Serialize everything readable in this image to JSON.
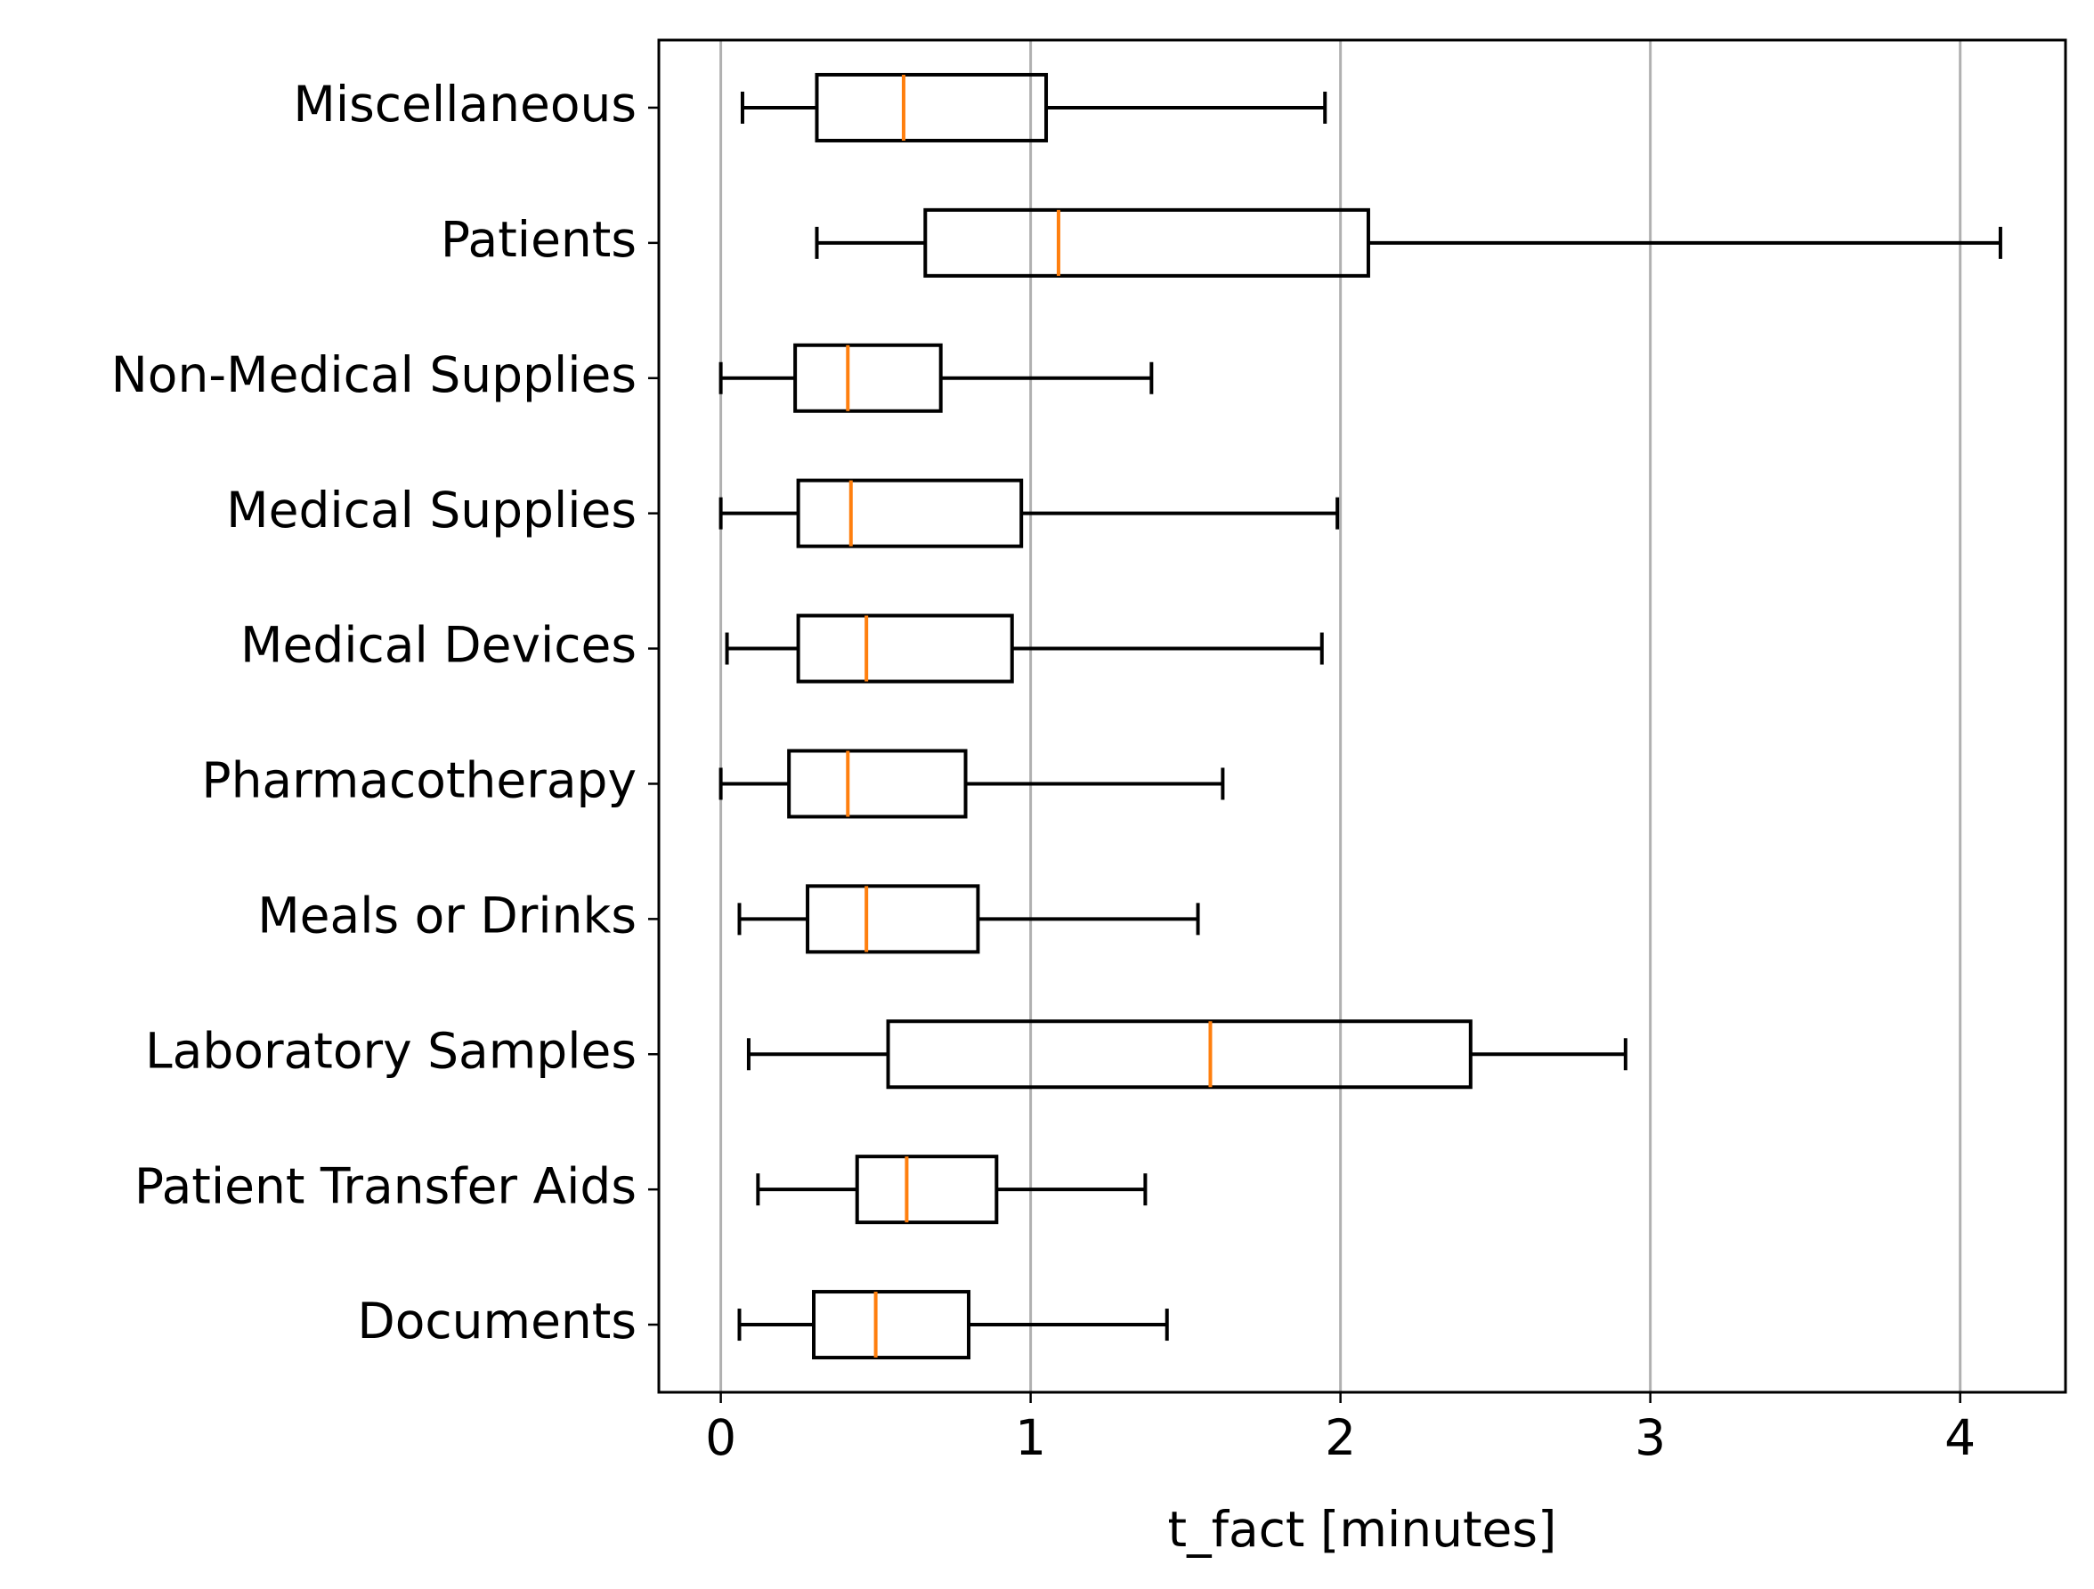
{
  "chart_data": {
    "type": "boxplot",
    "xlabel": "t_fact [minutes]",
    "categories": [
      "Documents",
      "Patient Transfer Aids",
      "Laboratory Samples",
      "Meals or Drinks",
      "Pharmacotherapy",
      "Medical Devices",
      "Medical Supplies",
      "Non-Medical Supplies",
      "Patients",
      "Miscellaneous"
    ],
    "whislo": [
      0.06,
      0.12,
      0.09,
      0.06,
      0.0,
      0.02,
      0.0,
      0.0,
      0.31,
      0.07
    ],
    "q1": [
      0.3,
      0.44,
      0.54,
      0.28,
      0.22,
      0.25,
      0.25,
      0.24,
      0.66,
      0.31
    ],
    "med": [
      0.5,
      0.6,
      1.58,
      0.47,
      0.41,
      0.47,
      0.42,
      0.41,
      1.09,
      0.59
    ],
    "q3": [
      0.8,
      0.89,
      2.42,
      0.83,
      0.79,
      0.94,
      0.97,
      0.71,
      2.09,
      1.05
    ],
    "whishi": [
      1.44,
      1.37,
      2.92,
      1.54,
      1.62,
      1.94,
      1.99,
      1.39,
      4.13,
      1.95
    ],
    "box_color": "#000000",
    "median_color": "#ff7f0e",
    "xlim": [
      -0.2,
      4.34
    ],
    "xticks": [
      0,
      1,
      2,
      3,
      4
    ],
    "grid": true,
    "grid_color": "#b0b0b0"
  }
}
